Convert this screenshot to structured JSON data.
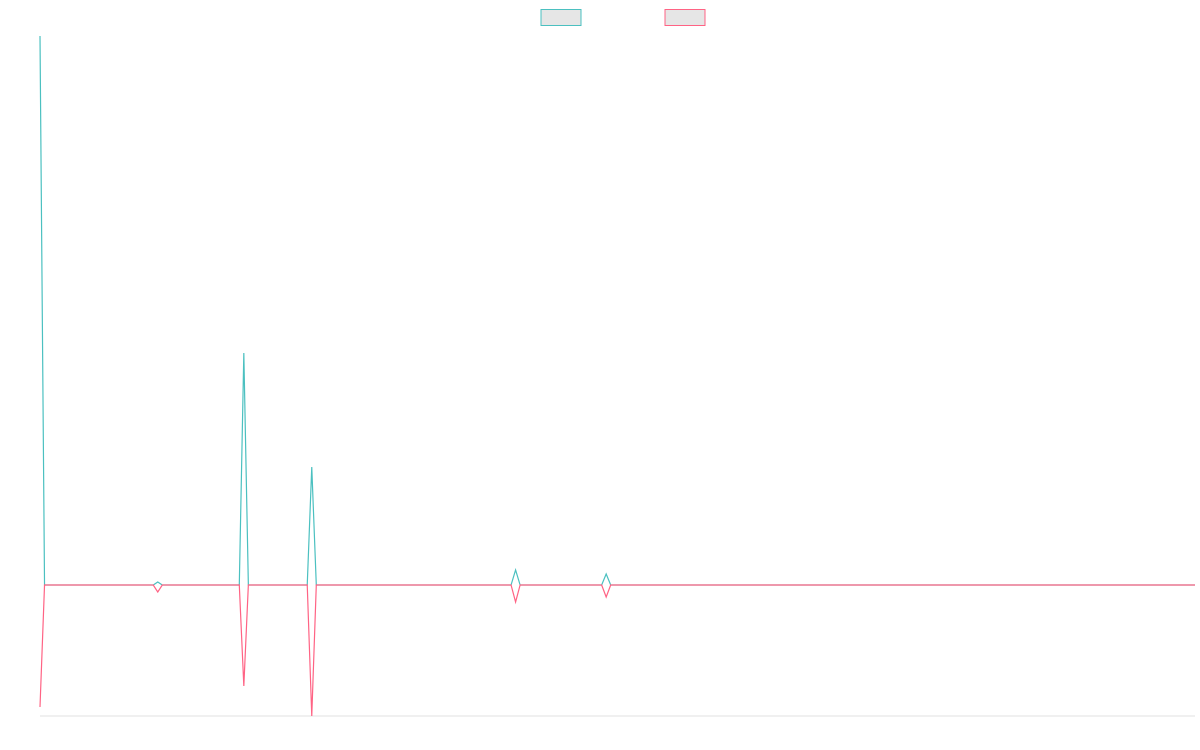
{
  "chart_data": {
    "type": "line",
    "x": [
      0,
      1,
      25,
      26,
      27,
      44,
      45,
      46,
      59,
      60,
      61,
      104,
      105,
      106,
      124,
      125,
      126,
      255
    ],
    "series": [
      {
        "color": "#4bc0c0",
        "values": [
          549,
          0,
          0,
          3,
          0,
          0,
          232,
          0,
          0,
          118,
          0,
          0,
          15,
          0,
          0,
          11,
          0,
          0
        ]
      },
      {
        "color": "#ff6384",
        "values": [
          -122,
          0,
          0,
          -7,
          0,
          0,
          -101,
          0,
          0,
          -131,
          0,
          0,
          -17,
          0,
          0,
          -12,
          0,
          0
        ]
      }
    ],
    "xlim": [
      0,
      255
    ],
    "ylim": [
      -131,
      549
    ],
    "legend": "top",
    "grid": false
  }
}
